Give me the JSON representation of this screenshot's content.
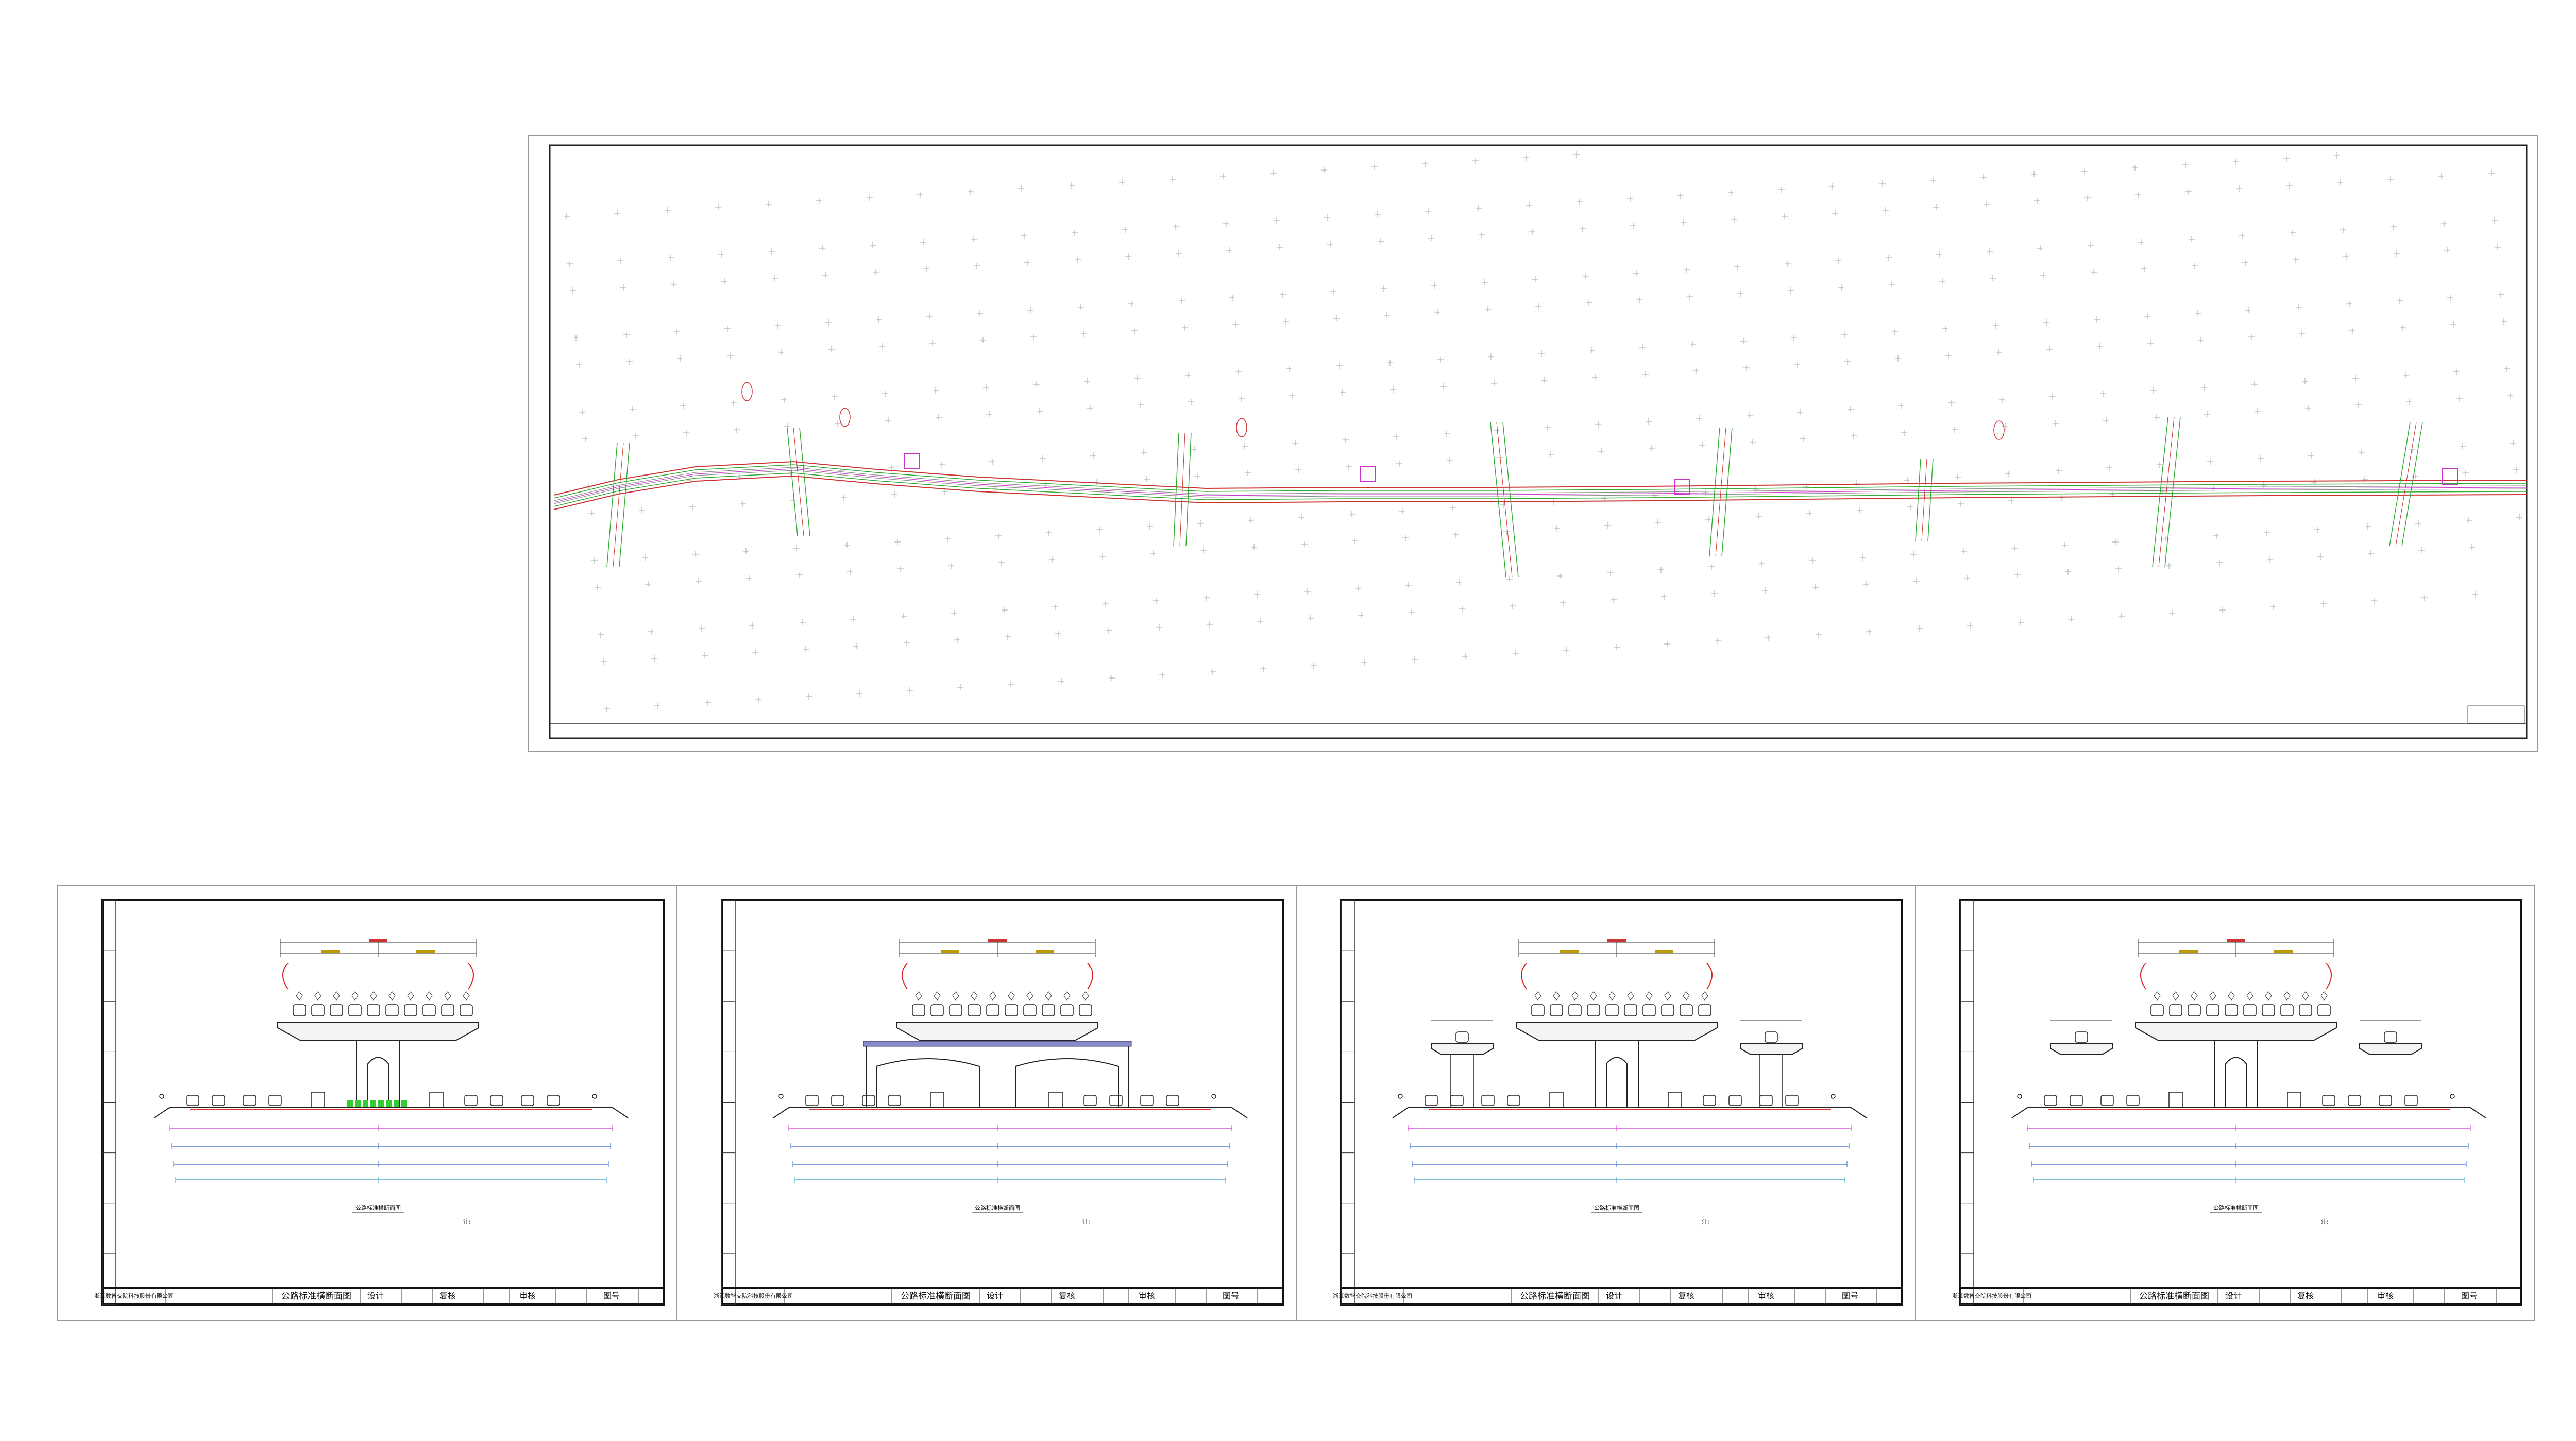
{
  "sheets": [
    {
      "company": "浙江数智交院科技股份有限公司",
      "title": "公路标准横断面图",
      "design": "设计",
      "check": "复核",
      "review": "审核",
      "drawing_no": "图号",
      "caption": "公路标准横断面图",
      "note": "注:"
    },
    {
      "company": "浙江数智交院科技股份有限公司",
      "title": "公路标准横断面图",
      "design": "设计",
      "check": "复核",
      "review": "审核",
      "drawing_no": "图号",
      "caption": "公路标准横断面图",
      "note": "注:"
    },
    {
      "company": "浙江数智交院科技股份有限公司",
      "title": "公路标准横断面图",
      "design": "设计",
      "check": "复核",
      "review": "审核",
      "drawing_no": "图号",
      "caption": "公路标准横断面图",
      "note": "注:"
    },
    {
      "company": "浙江数智交院科技股份有限公司",
      "title": "公路标准横断面图",
      "design": "设计",
      "check": "复核",
      "review": "审核",
      "drawing_no": "图号",
      "caption": "公路标准横断面图",
      "note": "注:"
    }
  ]
}
